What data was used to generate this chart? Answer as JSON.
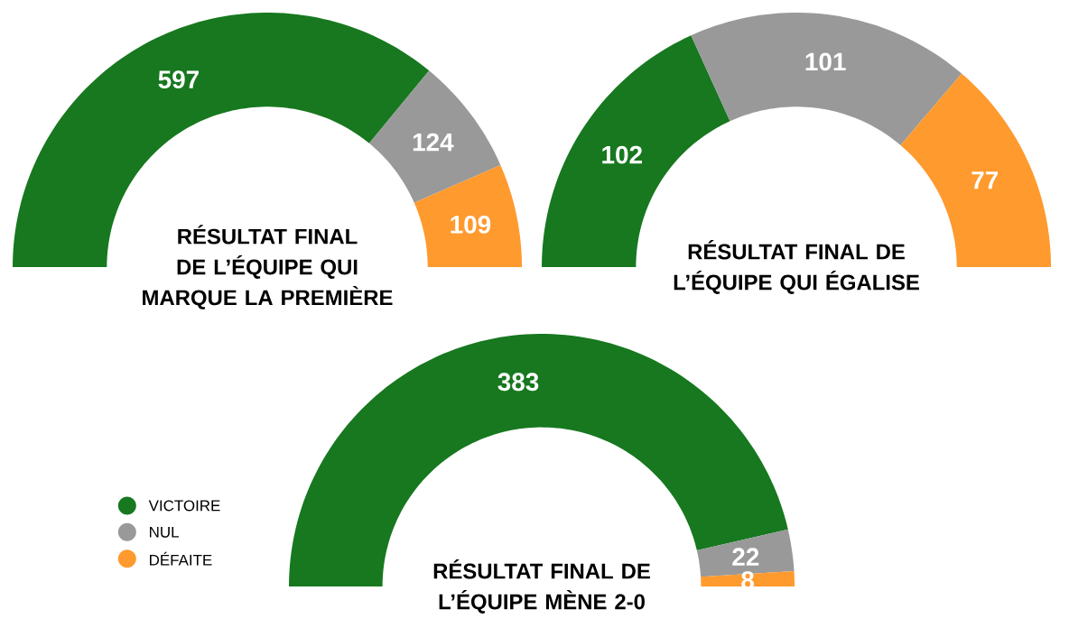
{
  "chart_data": [
    {
      "type": "donut",
      "title": "RÉSULTAT FINAL DE L’ÉQUIPE QUI MARQUE LA PREMIÈRE",
      "categories": [
        null,
        null,
        null
      ],
      "values": [
        597,
        124,
        109
      ],
      "colors": [
        "#17781f",
        "#999999",
        "#ff9a2e"
      ],
      "data_labels": true
    },
    {
      "type": "donut",
      "title": "RÉSULTAT FINAL DE L’ÉQUIPE QUI ÉGALISE",
      "categories": [
        null,
        null,
        null
      ],
      "values": [
        102,
        101,
        77
      ],
      "colors": [
        "#17781f",
        "#999999",
        "#ff9a2e"
      ],
      "data_labels": true
    },
    {
      "type": "donut",
      "title": "RÉSULTAT FINAL DE L’ÉQUIPE MÈNE 2-0",
      "categories": [
        "VICTOIRE",
        "NUL",
        "DÉFAITE"
      ],
      "values": [
        383,
        22,
        8
      ],
      "colors": [
        "#17781f",
        "#999999",
        "#ff9a2e"
      ],
      "data_labels": true,
      "legend": "left"
    }
  ]
}
